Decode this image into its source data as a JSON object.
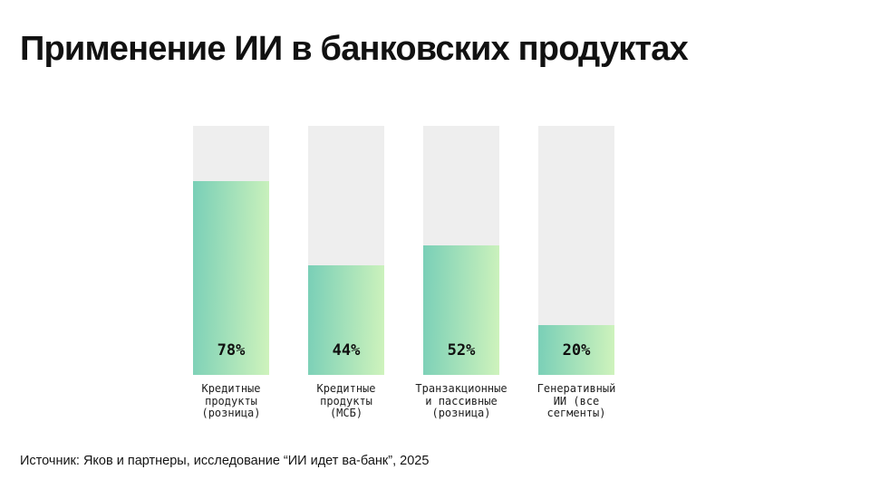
{
  "page": {
    "title": "Применение ИИ в банковских продуктах",
    "source": "Источник: Яков и партнеры, исследование “ИИ идет ва-банк”, 2025"
  },
  "chart_data": {
    "type": "bar",
    "title": "Применение ИИ в банковских продуктах",
    "orientation": "vertical",
    "categories": [
      "Кредитные продукты (розница)",
      "Кредитные продукты (МСБ)",
      "Транзакционные и пассивные (розница)",
      "Генеративный ИИ (все сегменты)"
    ],
    "categories_wrapped": [
      "Кредитные\nпродукты\n(розница)",
      "Кредитные\nпродукты\n(МСБ)",
      "Транзакционные\nи пассивные\n(розница)",
      "Генеративный\nИИ (все\nсегменты)"
    ],
    "values": [
      78,
      44,
      52,
      20
    ],
    "value_labels": [
      "78%",
      "44%",
      "52%",
      "20%"
    ],
    "unit": "%",
    "ylim": [
      0,
      100
    ],
    "grid": false,
    "legend": false,
    "colors": {
      "track": "#eeeeee",
      "fill_gradient_start": "#79cfb7",
      "fill_gradient_end": "#cff3bc",
      "text": "#111111"
    }
  }
}
